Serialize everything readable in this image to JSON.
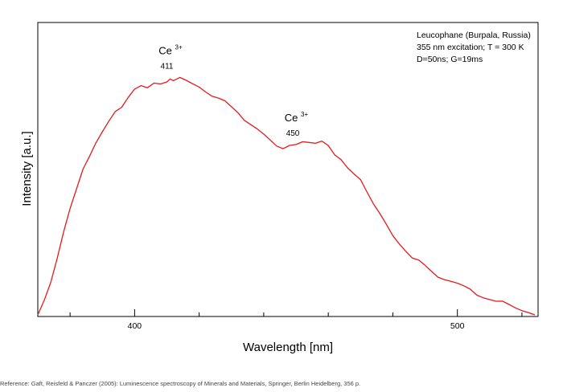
{
  "chart_data": {
    "type": "line",
    "title": "",
    "xlabel": "Wavelength [nm]",
    "ylabel": "Intensity [a.u.]",
    "xlim": [
      370,
      525
    ],
    "ylim": [
      0,
      1.0
    ],
    "x_ticks": [
      400,
      500
    ],
    "x_minor_ticks": [
      380,
      420,
      440,
      460,
      480,
      520
    ],
    "y_ticks": [],
    "grid": false,
    "legend": "none",
    "series": [
      {
        "color": "#e41a1c",
        "points": [
          [
            370,
            0.0
          ],
          [
            372,
            0.06
          ],
          [
            374,
            0.13
          ],
          [
            376,
            0.22
          ],
          [
            378,
            0.32
          ],
          [
            380,
            0.41
          ],
          [
            382,
            0.49
          ],
          [
            384,
            0.57
          ],
          [
            386,
            0.62
          ],
          [
            388,
            0.67
          ],
          [
            390,
            0.71
          ],
          [
            392,
            0.75
          ],
          [
            394,
            0.79
          ],
          [
            396,
            0.81
          ],
          [
            398,
            0.85
          ],
          [
            400,
            0.88
          ],
          [
            402,
            0.89
          ],
          [
            404,
            0.88
          ],
          [
            406,
            0.9
          ],
          [
            408,
            0.9
          ],
          [
            410,
            0.91
          ],
          [
            411,
            0.92
          ],
          [
            412,
            0.91
          ],
          [
            414,
            0.92
          ],
          [
            416,
            0.91
          ],
          [
            418,
            0.9
          ],
          [
            420,
            0.89
          ],
          [
            422,
            0.87
          ],
          [
            424,
            0.85
          ],
          [
            426,
            0.84
          ],
          [
            428,
            0.83
          ],
          [
            430,
            0.81
          ],
          [
            432,
            0.79
          ],
          [
            434,
            0.76
          ],
          [
            436,
            0.74
          ],
          [
            438,
            0.72
          ],
          [
            440,
            0.7
          ],
          [
            442,
            0.68
          ],
          [
            444,
            0.66
          ],
          [
            446,
            0.65
          ],
          [
            448,
            0.66
          ],
          [
            450,
            0.66
          ],
          [
            452,
            0.67
          ],
          [
            454,
            0.67
          ],
          [
            456,
            0.67
          ],
          [
            458,
            0.68
          ],
          [
            460,
            0.66
          ],
          [
            462,
            0.62
          ],
          [
            464,
            0.6
          ],
          [
            466,
            0.57
          ],
          [
            468,
            0.55
          ],
          [
            470,
            0.53
          ],
          [
            472,
            0.48
          ],
          [
            474,
            0.43
          ],
          [
            476,
            0.39
          ],
          [
            478,
            0.35
          ],
          [
            480,
            0.31
          ],
          [
            482,
            0.28
          ],
          [
            484,
            0.25
          ],
          [
            486,
            0.22
          ],
          [
            488,
            0.21
          ],
          [
            490,
            0.19
          ],
          [
            492,
            0.17
          ],
          [
            494,
            0.15
          ],
          [
            496,
            0.14
          ],
          [
            498,
            0.13
          ],
          [
            500,
            0.12
          ],
          [
            502,
            0.11
          ],
          [
            504,
            0.1
          ],
          [
            506,
            0.08
          ],
          [
            508,
            0.07
          ],
          [
            510,
            0.06
          ],
          [
            512,
            0.05
          ],
          [
            514,
            0.05
          ],
          [
            516,
            0.04
          ],
          [
            518,
            0.03
          ],
          [
            520,
            0.02
          ],
          [
            522,
            0.01
          ],
          [
            524,
            0.0
          ]
        ]
      }
    ],
    "annotations": [
      {
        "ion": "Ce",
        "charge": "3+",
        "x": 411,
        "y": 0.92,
        "wavelength_label": "411"
      },
      {
        "ion": "Ce",
        "charge": "3+",
        "x": 450,
        "y": 0.66,
        "wavelength_label": "450"
      }
    ],
    "info_lines": [
      "Leucophane (Burpala, Russia)",
      "355 nm excitation; T = 300 K",
      "D=50ns; G=19ms"
    ]
  },
  "reference": "Reference: Gaft, Reisfeld & Panczer (2005): Luminescence spectroscopy of Minerals and Materials, Springer, Berlin Heidelberg, 356 p."
}
